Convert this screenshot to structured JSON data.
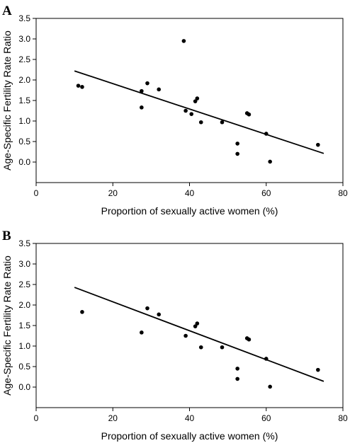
{
  "chart_data": [
    {
      "panel": "A",
      "type": "scatter",
      "xlabel": "Proportion of sexually active women (%)",
      "ylabel": "Age-Specific Fertility Rate Ratio",
      "xlim": [
        0,
        80
      ],
      "ylim": [
        -0.5,
        3.5
      ],
      "xticks": [
        "0",
        "20",
        "40",
        "60",
        "80"
      ],
      "yticks": [
        "0.0",
        "0.5",
        "1.0",
        "1.5",
        "2.0",
        "2.5",
        "3.0",
        "3.5"
      ],
      "points": [
        {
          "x": 11,
          "y": 1.86
        },
        {
          "x": 12,
          "y": 1.83
        },
        {
          "x": 27.5,
          "y": 1.73
        },
        {
          "x": 27.5,
          "y": 1.33
        },
        {
          "x": 29,
          "y": 1.92
        },
        {
          "x": 32,
          "y": 1.77
        },
        {
          "x": 38.5,
          "y": 2.95
        },
        {
          "x": 39,
          "y": 1.25
        },
        {
          "x": 40.5,
          "y": 1.17
        },
        {
          "x": 41.5,
          "y": 1.48
        },
        {
          "x": 42,
          "y": 1.55
        },
        {
          "x": 43,
          "y": 0.97
        },
        {
          "x": 48.5,
          "y": 0.97
        },
        {
          "x": 52.5,
          "y": 0.45
        },
        {
          "x": 52.5,
          "y": 0.2
        },
        {
          "x": 55,
          "y": 1.19
        },
        {
          "x": 55.5,
          "y": 1.16
        },
        {
          "x": 60,
          "y": 0.69
        },
        {
          "x": 61,
          "y": 0.01
        },
        {
          "x": 73.5,
          "y": 0.42
        }
      ],
      "trendline": {
        "x": [
          10,
          75
        ],
        "y": [
          2.22,
          0.21
        ]
      }
    },
    {
      "panel": "B",
      "type": "scatter",
      "xlabel": "Proportion of sexually active women (%)",
      "ylabel": "Age-Specific Fertility Rate Ratio",
      "xlim": [
        0,
        80
      ],
      "ylim": [
        -0.5,
        3.5
      ],
      "xticks": [
        "0",
        "20",
        "40",
        "60",
        "80"
      ],
      "yticks": [
        "0.0",
        "0.5",
        "1.0",
        "1.5",
        "2.0",
        "2.5",
        "3.0",
        "3.5"
      ],
      "points": [
        {
          "x": 12,
          "y": 1.83
        },
        {
          "x": 27.5,
          "y": 1.33
        },
        {
          "x": 29,
          "y": 1.92
        },
        {
          "x": 32,
          "y": 1.77
        },
        {
          "x": 39,
          "y": 1.25
        },
        {
          "x": 41.5,
          "y": 1.48
        },
        {
          "x": 42,
          "y": 1.55
        },
        {
          "x": 43,
          "y": 0.97
        },
        {
          "x": 48.5,
          "y": 0.97
        },
        {
          "x": 52.5,
          "y": 0.45
        },
        {
          "x": 52.5,
          "y": 0.2
        },
        {
          "x": 55,
          "y": 1.19
        },
        {
          "x": 55.5,
          "y": 1.16
        },
        {
          "x": 60,
          "y": 0.69
        },
        {
          "x": 61,
          "y": 0.01
        },
        {
          "x": 73.5,
          "y": 0.42
        }
      ],
      "trendline": {
        "x": [
          10,
          75
        ],
        "y": [
          2.43,
          0.14
        ]
      }
    }
  ]
}
